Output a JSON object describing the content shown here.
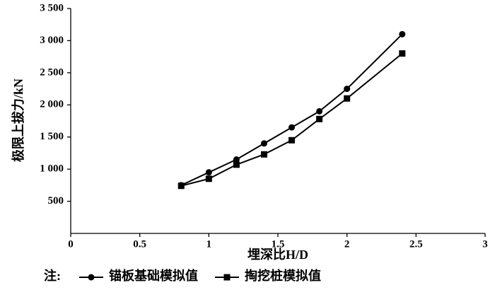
{
  "chart_data": {
    "type": "line",
    "x_label": "埋深比H/D",
    "y_label": "极限上拔力/kN",
    "legend_prefix": "注:",
    "legend": "bottom",
    "x": [
      0.8,
      1.0,
      1.2,
      1.4,
      1.6,
      1.8,
      2.0,
      2.4
    ],
    "series": [
      {
        "name": "锚板基础模拟值",
        "color": "#000000",
        "marker": "circle",
        "values": [
          750,
          950,
          1150,
          1400,
          1650,
          1900,
          2250,
          3100
        ]
      },
      {
        "name": "掏挖桩模拟值",
        "color": "#000000",
        "marker": "square",
        "values": [
          740,
          850,
          1070,
          1230,
          1450,
          1780,
          2100,
          2800
        ]
      }
    ],
    "xlim": [
      0,
      3
    ],
    "xticks": [
      0,
      0.5,
      1,
      1.5,
      2,
      2.5,
      3
    ],
    "ylim": [
      0,
      3500
    ],
    "yticks": [
      {
        "value": 500,
        "label": "500"
      },
      {
        "value": 1000,
        "label": "1 000"
      },
      {
        "value": 1500,
        "label": "1 500"
      },
      {
        "value": 2000,
        "label": "2 000"
      },
      {
        "value": 2500,
        "label": "2 500"
      },
      {
        "value": 3000,
        "label": "3 000"
      },
      {
        "value": 3500,
        "label": "3 500"
      }
    ],
    "grid": false
  }
}
